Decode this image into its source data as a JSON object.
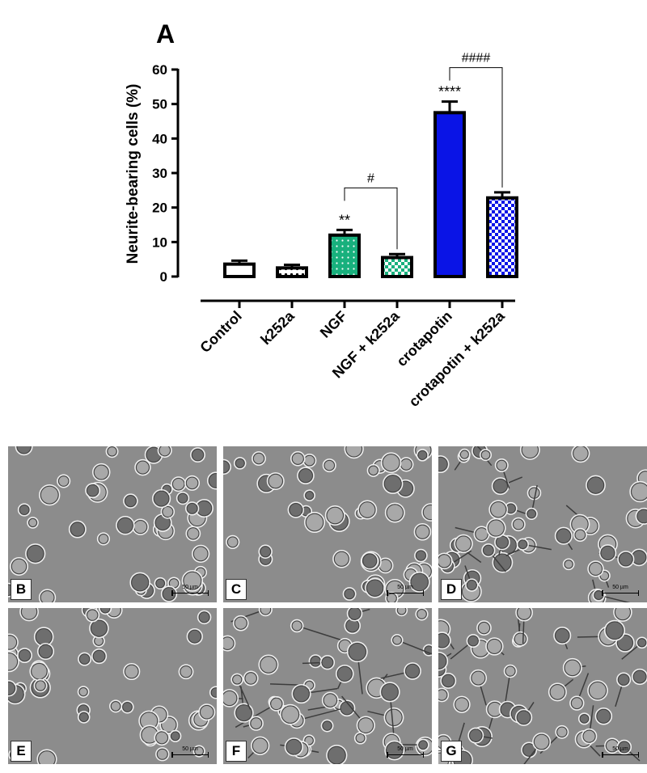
{
  "figure": {
    "panel_label": "A"
  },
  "chart_data": {
    "type": "bar",
    "ylabel": "Neurite-bearing cells (%)",
    "xlabel": "",
    "ylim": [
      0,
      60
    ],
    "yticks": [
      0,
      10,
      20,
      30,
      40,
      50,
      60
    ],
    "categories": [
      "Control",
      "k252a",
      "NGF",
      "NGF + k252a",
      "crotapotin",
      "crotapotin + k252a"
    ],
    "values": [
      3.6,
      2.5,
      12.0,
      5.5,
      47.5,
      22.8
    ],
    "errors": [
      1.0,
      0.9,
      1.5,
      1.0,
      3.2,
      1.6
    ],
    "fills": [
      "open",
      "open-dots",
      "green-dots",
      "green-checker",
      "blue-solid",
      "blue-checker"
    ],
    "colors": {
      "green": "#18b07d",
      "blue": "#0a14e6",
      "outline": "#000000"
    },
    "significance": [
      {
        "category_index": 2,
        "label": "**"
      },
      {
        "category_index": 4,
        "label": "****"
      }
    ],
    "comparisons": [
      {
        "from": 2,
        "to": 3,
        "label": "#"
      },
      {
        "from": 4,
        "to": 5,
        "label": "####"
      }
    ]
  },
  "micrographs": [
    {
      "letter": "B",
      "scale": "50 µm"
    },
    {
      "letter": "C",
      "scale": "50 µm"
    },
    {
      "letter": "D",
      "scale": "50 µm"
    },
    {
      "letter": "E",
      "scale": "50 µm"
    },
    {
      "letter": "F",
      "scale": "50 µm"
    },
    {
      "letter": "G",
      "scale": "50 µm"
    }
  ]
}
